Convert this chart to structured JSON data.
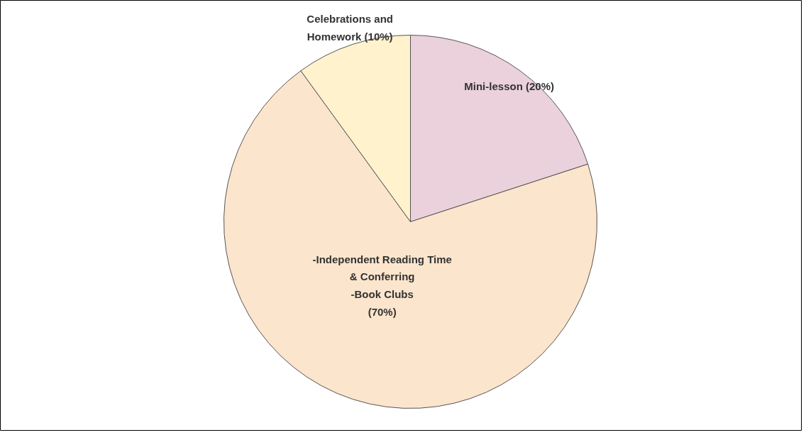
{
  "chart_data": {
    "type": "pie",
    "categories": [
      "Mini-lesson (20%)",
      "-Independent Reading Time\n& Conferring\n-Book Clubs\n(70%)",
      "Celebrations and\nHomework (10%)"
    ],
    "values": [
      20,
      70,
      10
    ],
    "colors": [
      "#ead1dc",
      "#fce5cd",
      "#fff2cc"
    ]
  }
}
